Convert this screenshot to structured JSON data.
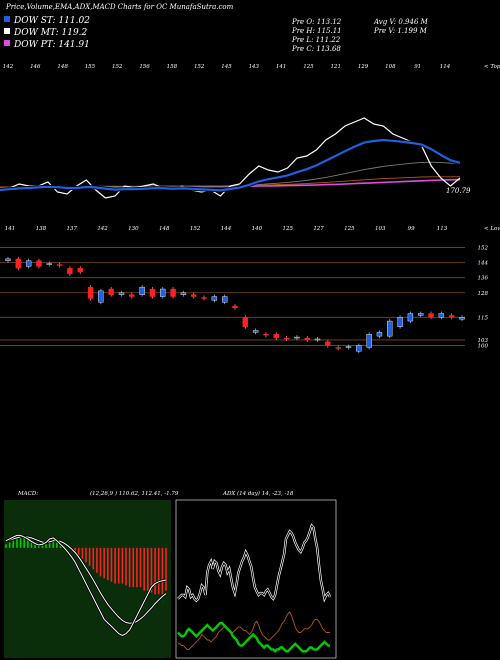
{
  "header": {
    "title": "Price,Volume,EMA,ADX,MACD Charts for OC MunafaSutra.com",
    "stats": [
      "Pre  O: 113.12",
      "Pre  H: 115.11",
      "Pre  L: 111.22",
      "Pre  C: 113.68"
    ],
    "avg_vol": "Avg V: 0.946  M",
    "pre_vol": "Pre  V: 1.199 M"
  },
  "colors": {
    "blue": "#1f5fe0",
    "white": "#ffffff",
    "pink": "#e04be0",
    "red": "#ff2020",
    "green": "#00cc00",
    "orange": "#b05a10",
    "grey": "#7a7a7a"
  },
  "chart_data": [
    {
      "type": "line",
      "name": "ema_panel",
      "legend": [
        {
          "label": "DOW ST: 111.02",
          "color": "#1f5fe0"
        },
        {
          "label": "DOW MT: 119.2",
          "color": "#ffffff"
        },
        {
          "label": "DOW PT: 141.91",
          "color": "#e04be0"
        }
      ],
      "top_labels": [
        "142",
        "146",
        "148",
        "155",
        "152",
        "156",
        "158",
        "152",
        "145",
        "143",
        "141",
        "125",
        "121",
        "129",
        "108",
        "91",
        "114"
      ],
      "top_label_suffix": "< Tops",
      "last_value_label": "170.79",
      "series": [
        {
          "color": "#ffffff",
          "values": [
            170,
            171,
            173,
            172,
            172,
            174,
            169,
            168,
            172,
            175,
            170,
            166,
            167,
            172,
            171,
            172,
            173,
            171,
            170,
            172,
            170,
            169,
            170,
            167,
            172,
            173,
            178,
            182,
            180,
            179,
            181,
            186,
            187,
            190,
            195,
            198,
            202,
            204,
            206,
            203,
            202,
            198,
            196,
            194,
            192,
            182,
            176,
            172,
            176
          ]
        },
        {
          "color": "#1f5fe0",
          "values": [
            170,
            170.4,
            170.8,
            171,
            171.3,
            171.6,
            171.4,
            171,
            171,
            171.5,
            171.3,
            170.7,
            170.2,
            170.4,
            170.4,
            170.6,
            170.9,
            170.9,
            170.6,
            170.8,
            170.6,
            170.3,
            170.1,
            169.8,
            170.5,
            171.2,
            172.6,
            174.3,
            175.4,
            176.3,
            177.3,
            178.9,
            180.4,
            182.3,
            184.6,
            187,
            189.4,
            191.7,
            193.7,
            194.5,
            195,
            194.6,
            194.1,
            193.5,
            192.7,
            190.4,
            187.6,
            184.9,
            183.6
          ]
        },
        {
          "color": "#7a7a7a",
          "values": [
            171,
            171.1,
            171.2,
            171.3,
            171.4,
            171.5,
            171.5,
            171.5,
            171.6,
            171.7,
            171.8,
            171.8,
            171.7,
            171.7,
            171.7,
            171.7,
            171.8,
            171.8,
            171.8,
            171.8,
            171.8,
            171.8,
            171.8,
            171.8,
            171.9,
            172,
            172.3,
            172.7,
            173.1,
            173.4,
            173.8,
            174.3,
            174.8,
            175.5,
            176.3,
            177.2,
            178.2,
            179.2,
            180.2,
            181,
            181.8,
            182.4,
            182.9,
            183.4,
            183.8,
            183.9,
            183.7,
            183.4,
            183.2
          ]
        },
        {
          "color": "#b05a10",
          "values": [
            171.5,
            171.5,
            171.6,
            171.6,
            171.7,
            171.7,
            171.7,
            171.8,
            171.8,
            171.8,
            171.9,
            171.9,
            171.9,
            171.9,
            171.9,
            171.9,
            172,
            172,
            172,
            172,
            172,
            172,
            172,
            172,
            172.1,
            172.1,
            172.2,
            172.4,
            172.5,
            172.7,
            172.8,
            173,
            173.2,
            173.5,
            173.8,
            174.1,
            174.4,
            174.8,
            175.1,
            175.4,
            175.7,
            175.9,
            176.1,
            176.3,
            176.5,
            176.6,
            176.6,
            176.6,
            176.6
          ]
        },
        {
          "color": "#e04be0",
          "values": [
            171.2,
            171.2,
            171.2,
            171.2,
            171.2,
            171.3,
            171.3,
            171.3,
            171.3,
            171.4,
            171.4,
            171.4,
            171.4,
            171.5,
            171.5,
            171.5,
            171.5,
            171.6,
            171.6,
            171.6,
            171.6,
            171.7,
            171.7,
            171.7,
            171.8,
            171.8,
            171.9,
            172,
            172,
            172.1,
            172.2,
            172.3,
            172.4,
            172.5,
            172.7,
            172.8,
            173,
            173.2,
            173.4,
            173.6,
            173.8,
            174,
            174.2,
            174.4,
            174.6,
            174.8,
            175,
            175.1,
            175.2
          ]
        }
      ],
      "ylim": [
        165,
        210
      ]
    },
    {
      "type": "candlestick",
      "name": "price_panel",
      "bottom_labels": [
        "141",
        "138",
        "137",
        "142",
        "130",
        "148",
        "152",
        "144",
        "140",
        "125",
        "127",
        "125",
        "103",
        "99",
        "113"
      ],
      "bottom_label_suffix": "< Lows",
      "y_ticks": [
        152,
        144,
        136,
        128,
        115,
        103,
        100
      ],
      "candles": [
        {
          "o": 145,
          "c": 146,
          "up": true
        },
        {
          "o": 146,
          "c": 141,
          "up": false
        },
        {
          "o": 142,
          "c": 145,
          "up": true
        },
        {
          "o": 145,
          "c": 142,
          "up": false
        },
        {
          "o": 143,
          "c": 143.5,
          "up": true
        },
        {
          "o": 143,
          "c": 142.5,
          "up": false
        },
        {
          "o": 141,
          "c": 138,
          "up": false
        },
        {
          "o": 141,
          "c": 139,
          "up": false
        },
        {
          "o": 131,
          "c": 125,
          "up": false
        },
        {
          "o": 123,
          "c": 129,
          "up": true
        },
        {
          "o": 130,
          "c": 127,
          "up": false
        },
        {
          "o": 127,
          "c": 128,
          "up": true
        },
        {
          "o": 127,
          "c": 126,
          "up": false
        },
        {
          "o": 127,
          "c": 131,
          "up": true
        },
        {
          "o": 130,
          "c": 126,
          "up": false
        },
        {
          "o": 126,
          "c": 130,
          "up": true
        },
        {
          "o": 130,
          "c": 126,
          "up": false
        },
        {
          "o": 127,
          "c": 128,
          "up": true
        },
        {
          "o": 127,
          "c": 126,
          "up": false
        },
        {
          "o": 125.5,
          "c": 125,
          "up": false
        },
        {
          "o": 124,
          "c": 126,
          "up": true
        },
        {
          "o": 123,
          "c": 126,
          "up": true
        },
        {
          "o": 121,
          "c": 120,
          "up": false
        },
        {
          "o": 115,
          "c": 110,
          "up": false
        },
        {
          "o": 107,
          "c": 108,
          "up": true
        },
        {
          "o": 106,
          "c": 105.5,
          "up": false
        },
        {
          "o": 106,
          "c": 104,
          "up": false
        },
        {
          "o": 104,
          "c": 103.5,
          "up": false
        },
        {
          "o": 104,
          "c": 104.5,
          "up": true
        },
        {
          "o": 104,
          "c": 103,
          "up": false
        },
        {
          "o": 103,
          "c": 103.5,
          "up": true
        },
        {
          "o": 102,
          "c": 100,
          "up": false
        },
        {
          "o": 99,
          "c": 98.5,
          "up": false
        },
        {
          "o": 99,
          "c": 99.5,
          "up": true
        },
        {
          "o": 97,
          "c": 100,
          "up": true
        },
        {
          "o": 99,
          "c": 106,
          "up": true
        },
        {
          "o": 105,
          "c": 107,
          "up": true
        },
        {
          "o": 105,
          "c": 113,
          "up": true
        },
        {
          "o": 110,
          "c": 115,
          "up": true
        },
        {
          "o": 113,
          "c": 117,
          "up": true
        },
        {
          "o": 116,
          "c": 117,
          "up": true
        },
        {
          "o": 117,
          "c": 115,
          "up": false
        },
        {
          "o": 115,
          "c": 117,
          "up": true
        },
        {
          "o": 116,
          "c": 115,
          "up": false
        },
        {
          "o": 114,
          "c": 115,
          "up": true
        }
      ],
      "ylim": [
        95,
        156
      ]
    },
    {
      "type": "bar",
      "name": "macd_panel",
      "title": "MACD:",
      "params": "(12,26,9 ) 110.62, 112.41, -1.79",
      "histogram": [
        1,
        1.5,
        2,
        2.5,
        3,
        3,
        2.5,
        2,
        1.5,
        1,
        0.8,
        1,
        1.5,
        2,
        1.5,
        1,
        0.5,
        0,
        -0.5,
        -1,
        -2,
        -3,
        -4,
        -5,
        -6,
        -7,
        -8,
        -8.5,
        -9,
        -9.5,
        -10,
        -10,
        -10,
        -10.5,
        -11,
        -11,
        -11,
        -11,
        -12,
        -12,
        -12.5,
        -13,
        -13,
        -13,
        -12
      ],
      "macd": [
        2,
        2.5,
        3,
        3.5,
        3.5,
        3,
        2.5,
        1.8,
        1.2,
        0.8,
        1,
        1.5,
        2.5,
        2.8,
        2,
        1,
        0,
        -1.2,
        -2.5,
        -4,
        -6,
        -8,
        -10,
        -12,
        -14,
        -16,
        -18,
        -20,
        -21,
        -22,
        -23,
        -24,
        -24.5,
        -24,
        -23,
        -21,
        -19,
        -17,
        -15,
        -13,
        -11,
        -10,
        -9.5,
        -9.2,
        -9
      ],
      "signal": [
        2,
        2.2,
        2.5,
        2.8,
        3.1,
        3.2,
        3,
        2.8,
        2.4,
        2,
        1.6,
        1.5,
        1.7,
        2,
        2,
        1.8,
        1.3,
        0.6,
        -0.3,
        -1.3,
        -2.6,
        -4.1,
        -5.7,
        -7.3,
        -9,
        -10.8,
        -12.6,
        -14.3,
        -15.8,
        -17.1,
        -18.3,
        -19.4,
        -20.3,
        -20.9,
        -21.1,
        -21,
        -20.6,
        -19.9,
        -19,
        -17.9,
        -16.8,
        -15.6,
        -14.6,
        -13.6,
        -12.8
      ],
      "ylim": [
        -30,
        12
      ]
    },
    {
      "type": "line",
      "name": "adx_panel",
      "title": "ADX",
      "params": "(14 day) 14, -23, -18",
      "series": [
        {
          "name": "ADX",
          "color": "#ffffff",
          "values": [
            30,
            31,
            32,
            32,
            31,
            36,
            35,
            31,
            32,
            30,
            29,
            30,
            33,
            37,
            36,
            32,
            44,
            48,
            50,
            46,
            50,
            49,
            45,
            43,
            47,
            49,
            48,
            44,
            46,
            41,
            36,
            33,
            38,
            44,
            47,
            50,
            52,
            55,
            53,
            50,
            47,
            41,
            36,
            34,
            32,
            33,
            33,
            32,
            34,
            35,
            33,
            31,
            30,
            32,
            37,
            42,
            46,
            50,
            54,
            62,
            64,
            66,
            65,
            63,
            60,
            58,
            56,
            55,
            57,
            60,
            61,
            63,
            66,
            69,
            68,
            62,
            57,
            48,
            40,
            35,
            30,
            32,
            33,
            31
          ]
        },
        {
          "name": "-DI",
          "color": "#b05a10",
          "values": [
            6,
            6,
            5,
            5,
            4,
            3,
            3,
            4,
            5,
            6,
            7,
            8,
            9,
            11,
            10,
            9,
            8,
            8,
            7,
            8,
            9,
            10,
            12,
            13,
            14,
            15,
            15,
            14,
            13,
            12,
            12,
            13,
            14,
            15,
            15,
            14,
            13,
            13,
            12,
            11,
            12,
            14,
            17,
            18,
            16,
            13,
            11,
            10,
            9,
            8,
            8,
            9,
            10,
            11,
            12,
            13,
            15,
            17,
            18,
            20,
            22,
            23,
            21,
            18,
            15,
            13,
            12,
            12,
            13,
            14,
            14,
            14,
            15,
            16,
            18,
            19,
            19,
            18,
            16,
            14,
            13,
            12,
            12,
            12
          ]
        },
        {
          "name": "+DI",
          "color": "#00cc00",
          "values": [
            12,
            11,
            10,
            10,
            11,
            13,
            14,
            13,
            12,
            11,
            10,
            11,
            12,
            13,
            14,
            15,
            16,
            15,
            14,
            13,
            14,
            15,
            16,
            17,
            17,
            16,
            15,
            14,
            13,
            12,
            10,
            9,
            8,
            6,
            5,
            5,
            6,
            7,
            8,
            9,
            10,
            11,
            10,
            9,
            7,
            6,
            5,
            4,
            5,
            5,
            4,
            3,
            3,
            2,
            3,
            3,
            4,
            4,
            3,
            2,
            2,
            3,
            4,
            5,
            6,
            5,
            4,
            3,
            2,
            2,
            2,
            3,
            4,
            4,
            3,
            3,
            3,
            4,
            5,
            6,
            7,
            6,
            5,
            5
          ]
        }
      ],
      "ylim": [
        0,
        80
      ]
    }
  ]
}
